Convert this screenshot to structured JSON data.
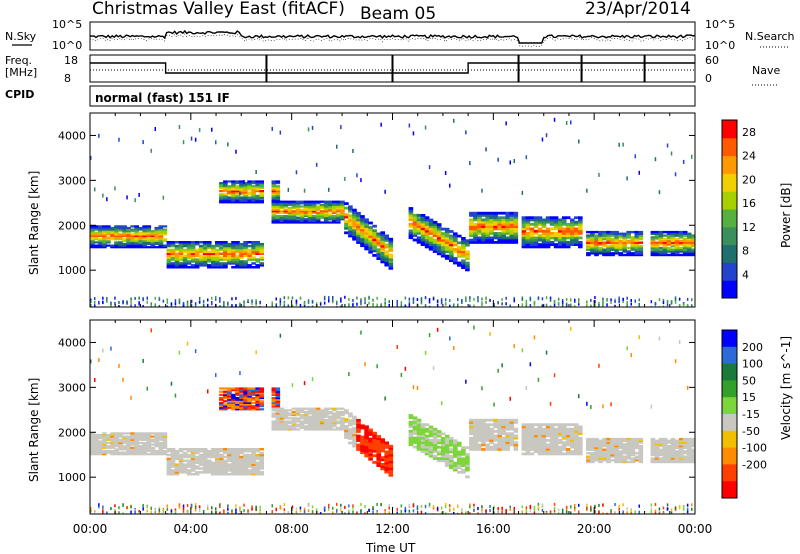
{
  "header": {
    "title": "Christmas Valley East (fitACF)",
    "beam": "Beam 05",
    "date": "23/Apr/2014",
    "cpid_label": "CPID",
    "cpid_value": "normal (fast) 151 IF"
  },
  "noise_panel": {
    "left_label": "N.Sky",
    "right_label": "N.Search",
    "ticks_left": [
      "10^5",
      "10^0"
    ],
    "ticks_right": [
      "10^5",
      "10^0"
    ]
  },
  "freq_panel": {
    "left_label": "Freq.\n[MHz]",
    "right_label": "Nave",
    "ticks_left": [
      "18",
      "8"
    ],
    "ticks_right": [
      "60",
      "0"
    ]
  },
  "colors": {
    "power": [
      "#0000ff",
      "#2244cc",
      "#1f6f6f",
      "#3a8f5a",
      "#55b040",
      "#a8d000",
      "#f0d000",
      "#ff9900",
      "#ff5a00",
      "#ff0000"
    ],
    "velocity": [
      "#0000ff",
      "#2d6ad8",
      "#1a7a3a",
      "#33a02c",
      "#7cd63a",
      "#c8c8c0",
      "#f0c000",
      "#ff8c00",
      "#ff4000",
      "#ff0000"
    ]
  },
  "chart_data": [
    {
      "type": "heatmap",
      "title": "Power",
      "ylabel": "Slant Range [km]",
      "xlabel": "Time UT",
      "x_ticks": [
        "00:00",
        "04:00",
        "08:00",
        "12:00",
        "16:00",
        "20:00",
        "00:00"
      ],
      "y_ticks": [
        1000,
        2000,
        3000,
        4000
      ],
      "ylim": [
        180,
        4500
      ],
      "colorbar": {
        "label": "Power [dB]",
        "ticks": [
          4,
          8,
          12,
          16,
          20,
          24,
          28
        ]
      },
      "echo_bands": [
        {
          "t0": 0.0,
          "t1": 2.9,
          "r_center": 1750,
          "r_width": 500
        },
        {
          "t0": 2.9,
          "t1": 7.0,
          "r_center": 1350,
          "r_width": 600
        },
        {
          "t0": 5.0,
          "t1": 7.5,
          "r_center": 2750,
          "r_width": 500
        },
        {
          "t0": 7.0,
          "t1": 10.0,
          "r_center": 2300,
          "r_width": 500
        },
        {
          "t0": 10.0,
          "t1": 12.0,
          "r_center": 1800,
          "r_width": 700
        },
        {
          "t0": 12.5,
          "t1": 15.0,
          "r_center": 1600,
          "r_width": 700
        },
        {
          "t0": 15.0,
          "t1": 17.0,
          "r_center": 1950,
          "r_width": 700
        },
        {
          "t0": 17.0,
          "t1": 19.5,
          "r_center": 1850,
          "r_width": 700
        },
        {
          "t0": 19.5,
          "t1": 24.0,
          "r_center": 1600,
          "r_width": 550
        }
      ]
    },
    {
      "type": "heatmap",
      "title": "Velocity",
      "ylabel": "Slant Range [km]",
      "xlabel": "Time UT",
      "x_ticks": [
        "00:00",
        "04:00",
        "08:00",
        "12:00",
        "16:00",
        "20:00",
        "00:00"
      ],
      "y_ticks": [
        1000,
        2000,
        3000,
        4000
      ],
      "ylim": [
        180,
        4500
      ],
      "colorbar": {
        "label": "Velocity [m s^-1]",
        "ticks": [
          200,
          100,
          50,
          15,
          -15,
          -50,
          -100,
          -200
        ]
      }
    }
  ]
}
